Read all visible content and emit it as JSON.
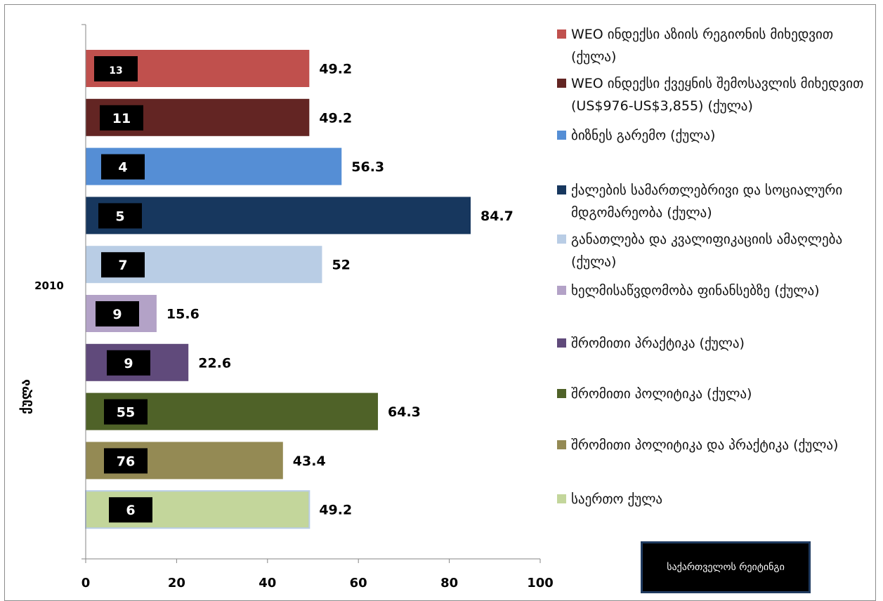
{
  "chart_data": {
    "type": "bar",
    "orientation": "horizontal",
    "category_label": "2010",
    "ylabel": "ქულა",
    "xlim": [
      0,
      100
    ],
    "x_ticks": [
      "0",
      "20",
      "40",
      "60",
      "80",
      "100"
    ],
    "grid": false,
    "legend_position": "right",
    "bars": [
      {
        "name": "WEO ინდექსი აზიის რეგიონის მიხედვით (ქულა)",
        "value": 49.2,
        "value_label": "49.2",
        "rank": "13",
        "color": "#c0504d"
      },
      {
        "name": "WEO ინდექსი ქვეყნის შემოსავლის მიხედვით (US$976-US$3,855) (ქულა)",
        "value": 49.2,
        "value_label": "49.2",
        "rank": "11",
        "color": "#632523"
      },
      {
        "name": "ბიზნეს გარემო (ქულა)",
        "value": 56.3,
        "value_label": "56.3",
        "rank": "4",
        "color": "#558ed5"
      },
      {
        "name": "ქალების სამართლებრივი და სოციალური მდგომარეობა (ქულა)",
        "value": 84.7,
        "value_label": "84.7",
        "rank": "5",
        "color": "#17375e"
      },
      {
        "name": "განათლება და კვალიფიკაციის ამაღლება (ქულა)",
        "value": 52,
        "value_label": "52",
        "rank": "7",
        "color": "#b9cde5"
      },
      {
        "name": "ხელმისაწვდომობა ფინანსებზე (ქულა)",
        "value": 15.6,
        "value_label": "15.6",
        "rank": "9",
        "color": "#b3a2c7"
      },
      {
        "name": "შრომითი პრაქტიკა (ქულა)",
        "value": 22.6,
        "value_label": "22.6",
        "rank": "9",
        "color": "#604a7b"
      },
      {
        "name": "შრომითი პოლიტიკა (ქულა)",
        "value": 64.3,
        "value_label": "64.3",
        "rank": "55",
        "color": "#4f6228"
      },
      {
        "name": "შრომითი პოლიტიკა და პრაქტიკა (ქულა)",
        "value": 43.4,
        "value_label": "43.4",
        "rank": "76",
        "color": "#948a54"
      },
      {
        "name": "საერთო ქულა",
        "value": 49.2,
        "value_label": "49.2",
        "rank": "6",
        "color": "#c3d69b"
      }
    ]
  },
  "legend": {
    "items": [
      {
        "label": "WEO ინდექსი აზიის რეგიონის მიხედვით (ქულა)",
        "color": "#c0504d"
      },
      {
        "label": "WEO ინდექსი ქვეყნის შემოსავლის მიხედვით (US$976-US$3,855) (ქულა)",
        "color": "#632523"
      },
      {
        "label": "ბიზნეს გარემო (ქულა)",
        "color": "#558ed5"
      },
      {
        "label": "ქალების სამართლებრივი და სოციალური მდგომარეობა (ქულა)",
        "color": "#17375e"
      },
      {
        "label": "განათლება და კვალიფიკაციის ამაღლება (ქულა)",
        "color": "#b9cde5"
      },
      {
        "label": "ხელმისაწვდომობა ფინანსებზე (ქულა)",
        "color": "#b3a2c7"
      },
      {
        "label": "შრომითი პრაქტიკა (ქულა)",
        "color": "#604a7b"
      },
      {
        "label": "შრომითი პოლიტიკა (ქულა)",
        "color": "#4f6228"
      },
      {
        "label": "შრომითი პოლიტიკა და პრაქტიკა (ქულა)",
        "color": "#948a54"
      },
      {
        "label": "საერთო ქულა",
        "color": "#c3d69b"
      }
    ]
  },
  "rank_box": {
    "label": "საქართველოს რეიტინგი"
  }
}
